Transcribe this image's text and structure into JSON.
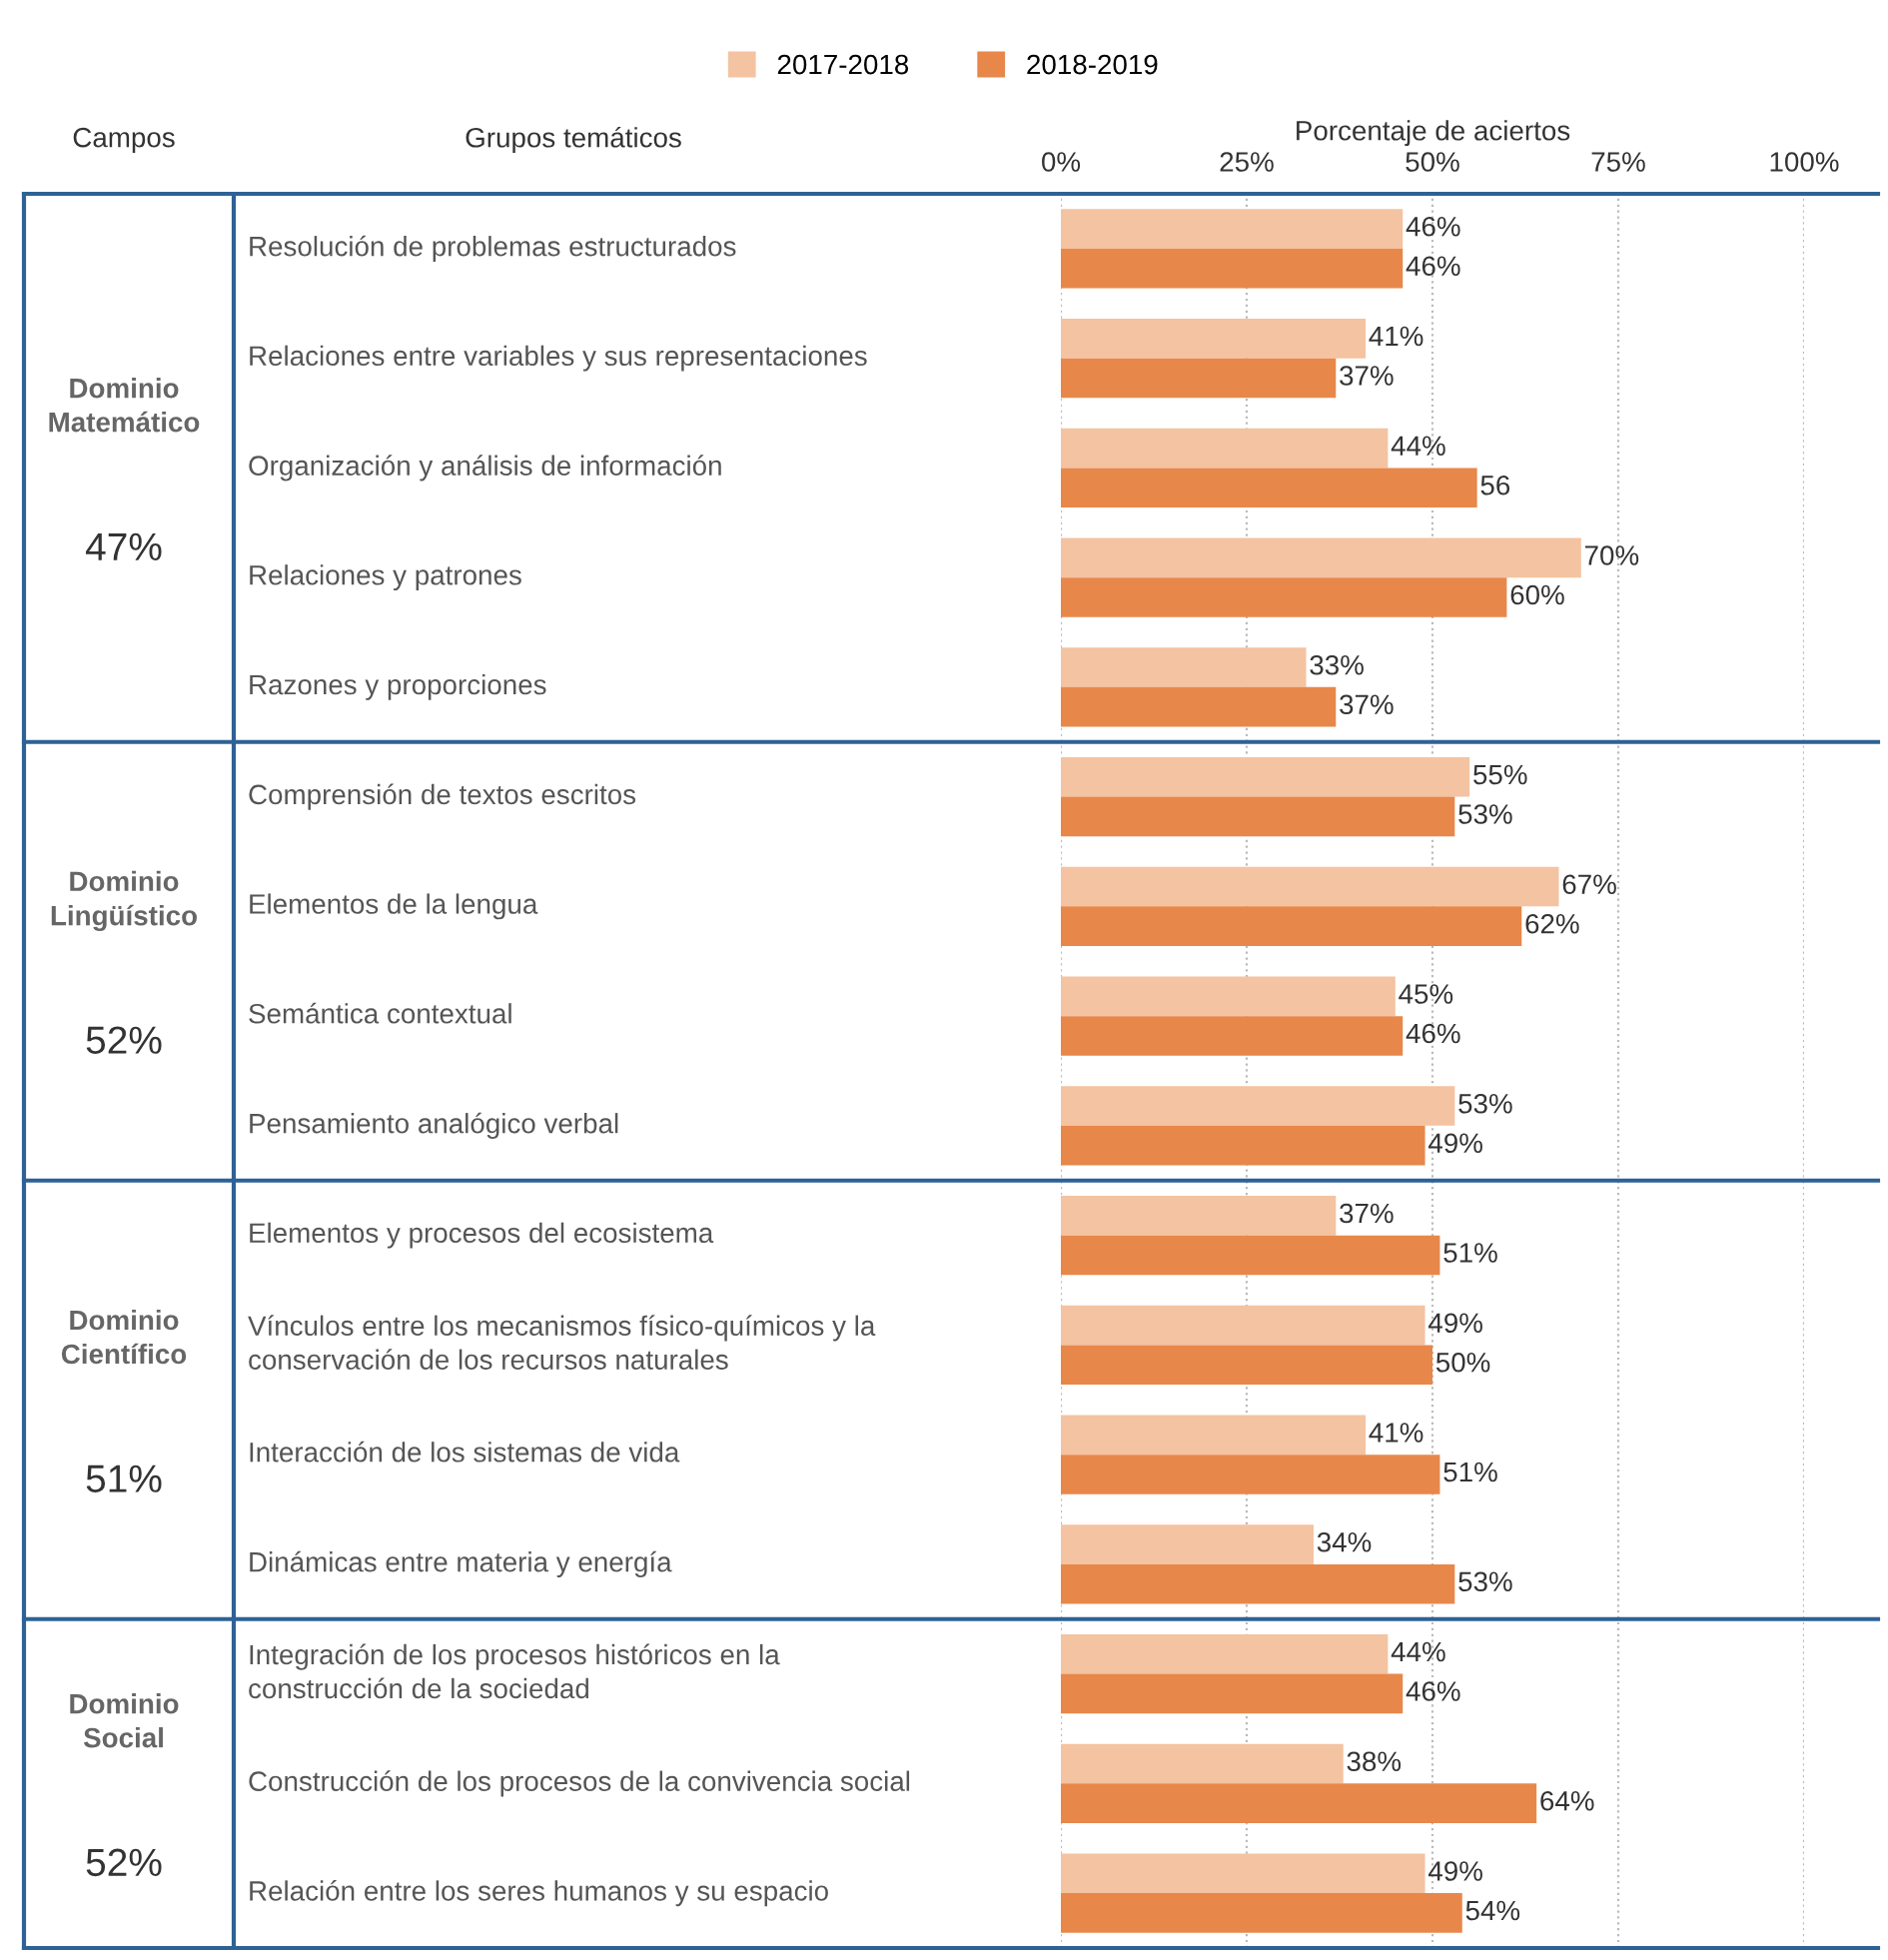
{
  "chart_data": {
    "type": "bar",
    "orientation": "horizontal",
    "xlabel": "Porcentaje de aciertos",
    "categories": [
      "Resolución de problemas estructurados",
      "Relaciones entre variables y sus representaciones",
      "Organización y análisis de información",
      "Relaciones y patrones",
      "Razones y proporciones",
      "Comprensión de textos escritos",
      "Elementos de la lengua",
      "Semántica contextual",
      "Pensamiento analógico verbal",
      "Elementos y procesos del ecosistema",
      "Vínculos entre los mecanismos físico-químicos y la\nconservación de los recursos naturales",
      "Interacción de los sistemas de vida",
      "Dinámicas entre materia y energía",
      "Integración de los procesos históricos en la\nconstrucción de la sociedad",
      "Construcción de los procesos de la convivencia social",
      "Relación entre los seres humanos y su espacio"
    ],
    "series": [
      {
        "name": "2017-2018",
        "color": "#f4c3a1",
        "values": [
          46,
          41,
          44,
          70,
          33,
          55,
          67,
          45,
          53,
          37,
          49,
          41,
          34,
          44,
          38,
          49
        ],
        "value_labels": [
          "46%",
          "41%",
          "44%",
          "70%",
          "33%",
          "55%",
          "67%",
          "45%",
          "53%",
          "37%",
          "49%",
          "41%",
          "34%",
          "44%",
          "38%",
          "49%"
        ]
      },
      {
        "name": "2018-2019",
        "color": "#e8874a",
        "values": [
          46,
          37,
          56,
          60,
          37,
          53,
          62,
          46,
          49,
          51,
          50,
          51,
          53,
          46,
          64,
          54
        ],
        "value_labels": [
          "46%",
          "37%",
          "56",
          "60%",
          "37%",
          "53%",
          "62%",
          "46%",
          "49%",
          "51%",
          "50%",
          "51%",
          "53%",
          "46%",
          "64%",
          "54%"
        ]
      }
    ],
    "xlim": [
      0,
      100
    ],
    "xticks": [
      {
        "value": 0,
        "label": "0%"
      },
      {
        "value": 25,
        "label": "25%"
      },
      {
        "value": 50,
        "label": "50%"
      },
      {
        "value": 75,
        "label": "75%"
      },
      {
        "value": 100,
        "label": "100%"
      }
    ],
    "grid": "x",
    "legend": "top",
    "annotations": [
      "Campos",
      "Grupos temáticos",
      "Dominio\nMatemático",
      "47%",
      "Dominio\nLingüístico",
      "52%",
      "Dominio\nCientífico",
      "51%",
      "Dominio\nSocial",
      "52%"
    ]
  }
}
